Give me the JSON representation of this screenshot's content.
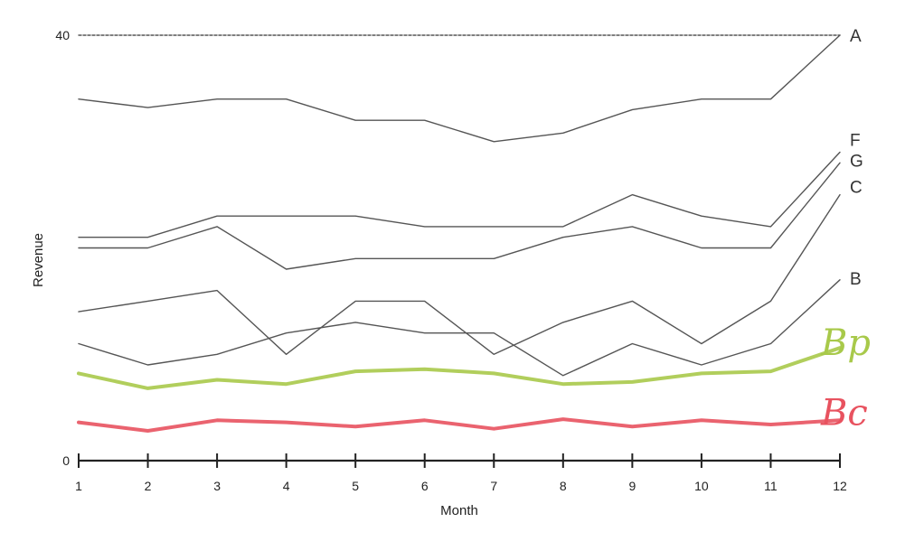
{
  "chart_data": {
    "type": "line",
    "xlabel": "Month",
    "ylabel": "Revenue",
    "x": [
      1,
      2,
      3,
      4,
      5,
      6,
      7,
      8,
      9,
      10,
      11,
      12
    ],
    "xlim": [
      1,
      12
    ],
    "ylim": [
      0,
      40
    ],
    "y_ticks": [
      {
        "value": 0,
        "label": "0"
      },
      {
        "value": 40,
        "label": "40"
      }
    ],
    "grid": false,
    "series": [
      {
        "name": "A",
        "color": "#555555",
        "style": "dashed",
        "label_style": "print",
        "values": [
          40,
          40,
          40,
          40,
          40,
          40,
          40,
          40,
          40,
          40,
          40,
          40
        ]
      },
      {
        "name": "",
        "color": "#555555",
        "style": "solid",
        "label_style": "none",
        "values": [
          34,
          33.2,
          34,
          34,
          32,
          32,
          30,
          30.8,
          33,
          34,
          34,
          40
        ]
      },
      {
        "name": "F",
        "color": "#555555",
        "style": "solid",
        "label_style": "print",
        "values": [
          21,
          21,
          23,
          23,
          23,
          22,
          22,
          22,
          25,
          23,
          22,
          29
        ]
      },
      {
        "name": "G",
        "color": "#555555",
        "style": "solid",
        "label_style": "print",
        "values": [
          20,
          20,
          22,
          18,
          19,
          19,
          19,
          21,
          22,
          20,
          20,
          28
        ]
      },
      {
        "name": "C",
        "color": "#555555",
        "style": "solid",
        "label_style": "print",
        "values": [
          14,
          15,
          16,
          10,
          15,
          15,
          10,
          13,
          15,
          11,
          15,
          25
        ]
      },
      {
        "name": "B",
        "color": "#555555",
        "style": "solid",
        "label_style": "print",
        "values": [
          11,
          9,
          10,
          12,
          13,
          12,
          12,
          8,
          11,
          9,
          11,
          17
        ]
      },
      {
        "name": "Bp",
        "color": "#a8c94a",
        "style": "solid",
        "label_style": "hand",
        "values": [
          8.2,
          6.8,
          7.6,
          7.2,
          8.4,
          8.6,
          8.2,
          7.2,
          7.4,
          8.2,
          8.4,
          10.6
        ]
      },
      {
        "name": "Bc",
        "color": "#e8525f",
        "style": "solid",
        "label_style": "hand",
        "values": [
          3.6,
          2.8,
          3.8,
          3.6,
          3.2,
          3.8,
          3.0,
          3.9,
          3.2,
          3.8,
          3.4,
          3.8
        ]
      }
    ]
  }
}
